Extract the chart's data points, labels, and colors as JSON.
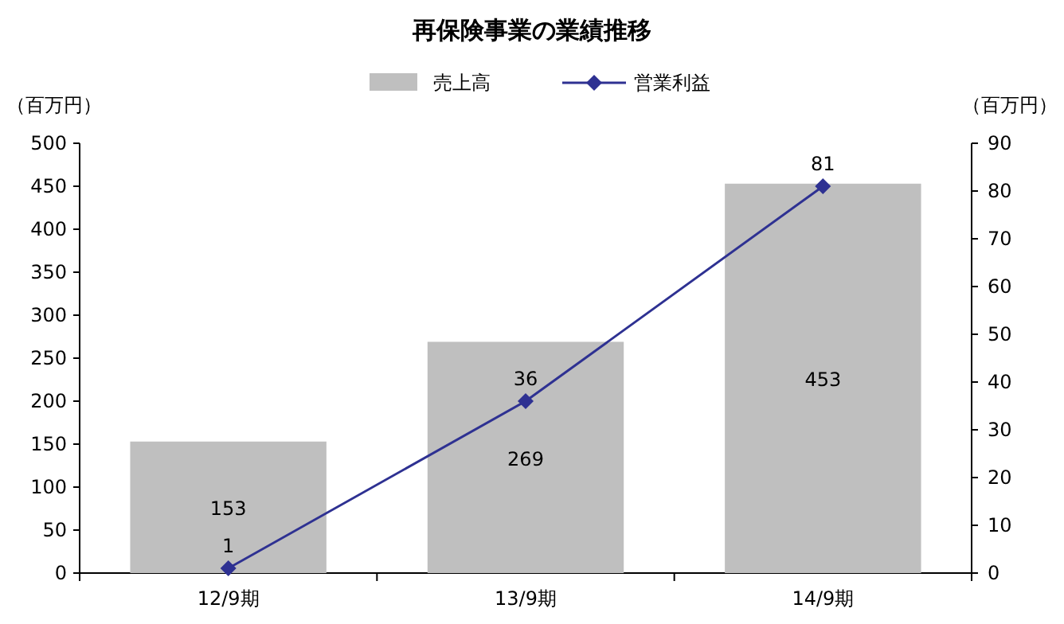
{
  "chart_data": {
    "type": "bar",
    "title": "再保険事業の業績推移",
    "ylabel": "（百万円）",
    "y2label": "（百万円）",
    "categories": [
      "12/9期",
      "13/9期",
      "14/9期"
    ],
    "series": [
      {
        "name": "売上高",
        "color": "#bfbfbf",
        "values": [
          153,
          269,
          453
        ]
      },
      {
        "name": "営業利益",
        "type": "line",
        "axis": "y2",
        "color": "#2e3192",
        "marker": "diamond",
        "values": [
          1,
          36,
          81
        ]
      }
    ],
    "ylim": [
      0,
      500
    ],
    "yticks": [
      0,
      50,
      100,
      150,
      200,
      250,
      300,
      350,
      400,
      450,
      500
    ],
    "y2lim": [
      0,
      90
    ],
    "y2ticks": [
      0,
      10,
      20,
      30,
      40,
      50,
      60,
      70,
      80,
      90
    ],
    "data_labels": true,
    "legend": "top",
    "grid": false
  }
}
